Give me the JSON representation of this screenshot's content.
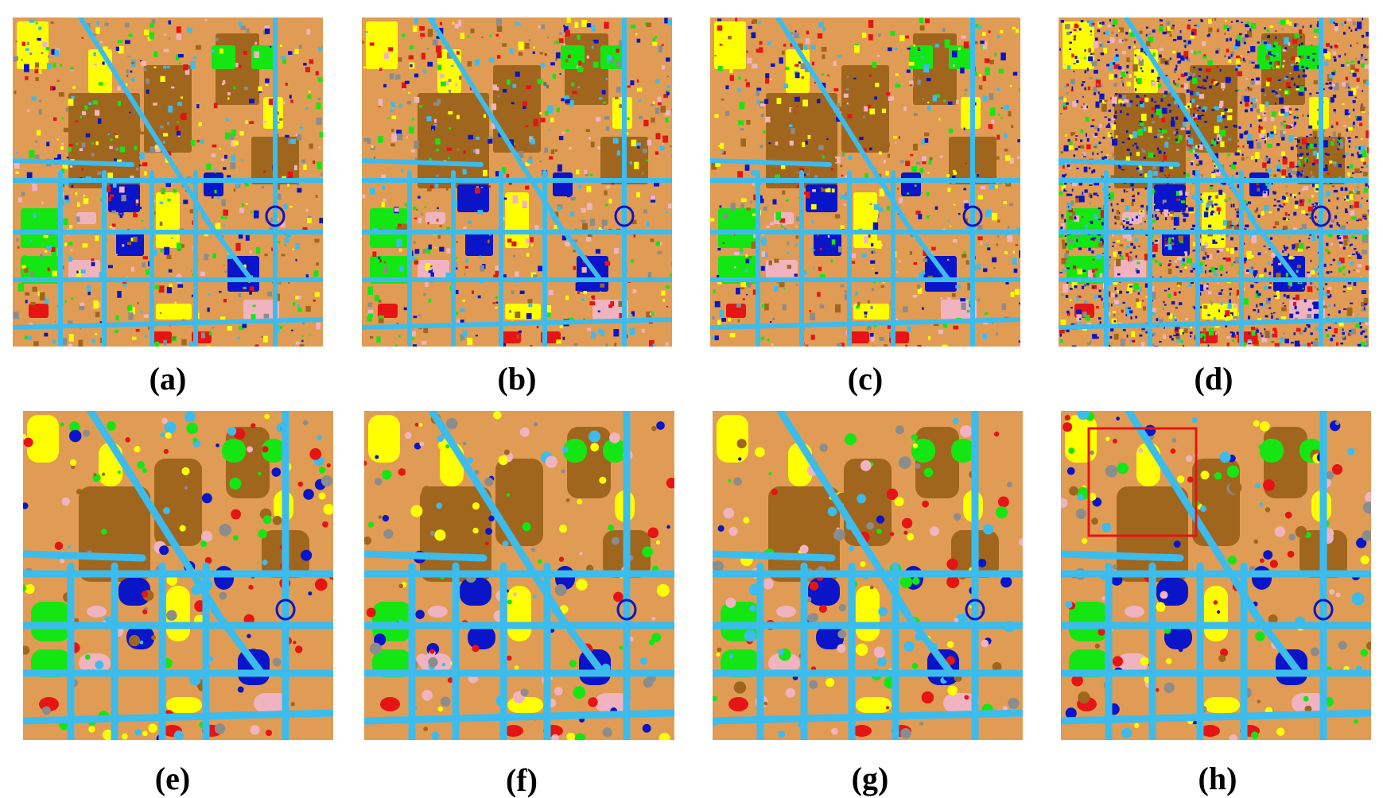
{
  "panels": [
    {
      "label": "(a)",
      "style": "grainy"
    },
    {
      "label": "(b)",
      "style": "grainy"
    },
    {
      "label": "(c)",
      "style": "grainy"
    },
    {
      "label": "(d)",
      "style": "noisy"
    },
    {
      "label": "(e)",
      "style": "smooth"
    },
    {
      "label": "(f)",
      "style": "smooth"
    },
    {
      "label": "(g)",
      "style": "smooth"
    },
    {
      "label": "(h)",
      "style": "smooth-box"
    }
  ],
  "palette": {
    "bare_soil": "#e09c54",
    "road": "#3cbcec",
    "residential": "#a0661e",
    "water": "#0a14c8",
    "vegetation": "#ffff00",
    "grass": "#14e614",
    "building_red": "#e61414",
    "building_pink": "#f0b4c0",
    "other": "#8c8c8c",
    "highlight_box": "#e61414"
  }
}
